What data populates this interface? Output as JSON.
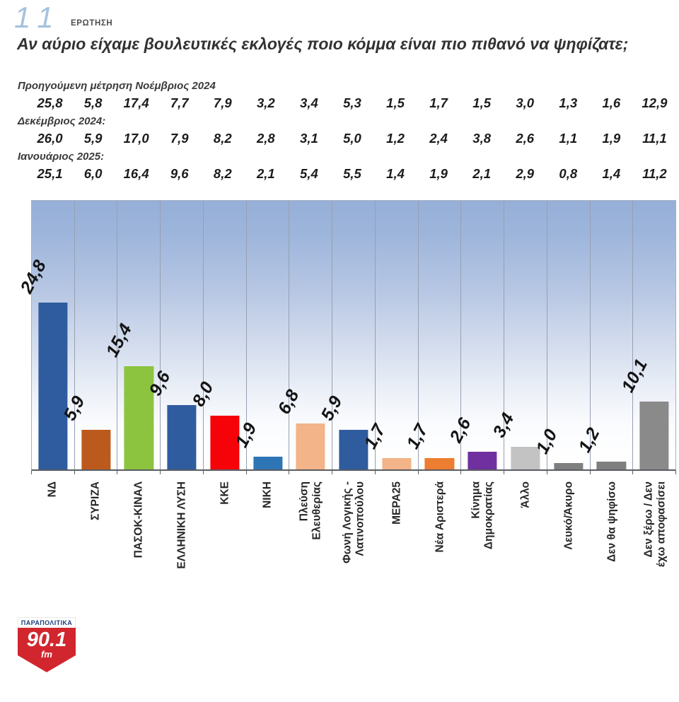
{
  "header": {
    "question_number": "11",
    "question_label": "ΕΡΩΤΗΣΗ",
    "title": "Αν αύριο είχαμε βουλευτικές εκλογές ποιο κόμμα είναι πιο πιθανό να ψηφίζατε;"
  },
  "previous_measurements": [
    {
      "label": "Προηγούμενη μέτρηση Νοέμβριος 2024",
      "values": [
        "25,8",
        "5,8",
        "17,4",
        "7,7",
        "7,9",
        "3,2",
        "3,4",
        "5,3",
        "1,5",
        "1,7",
        "1,5",
        "3,0",
        "1,3",
        "1,6",
        "12,9"
      ]
    },
    {
      "label": "Δεκέμβριος 2024:",
      "values": [
        "26,0",
        "5,9",
        "17,0",
        "7,9",
        "8,2",
        "2,8",
        "3,1",
        "5,0",
        "1,2",
        "2,4",
        "3,8",
        "2,6",
        "1,1",
        "1,9",
        "11,1"
      ]
    },
    {
      "label": "Ιανουάριος 2025:",
      "values": [
        "25,1",
        "6,0",
        "16,4",
        "9,6",
        "8,2",
        "2,1",
        "5,4",
        "5,5",
        "1,4",
        "1,9",
        "2,1",
        "2,9",
        "0,8",
        "1,4",
        "11,2"
      ]
    }
  ],
  "chart_data": {
    "type": "bar",
    "title": "",
    "xlabel": "",
    "ylabel": "",
    "ylim": [
      0,
      40
    ],
    "grid": "vertical category separators, no horizontal gridlines, no y-axis labels",
    "legend": "none",
    "plot_background": "vertical gradient blue #96afd7 at top fading to white at bottom",
    "categories": [
      "ΝΔ",
      "ΣΥΡΙΖΑ",
      "ΠΑΣΟΚ-ΚΙΝΑΛ",
      "ΕΛΛΗΝΙΚΗ ΛΥΣΗ",
      "ΚΚΕ",
      "ΝΙΚΗ",
      "Πλεύση\nΕλευθερίας",
      "Φωνή Λογικής -\nΛατινοπούλου",
      "ΜΕΡΑ25",
      "Νέα Αριστερά",
      "Κίνημα\nΔημοκρατίας",
      "Άλλο",
      "Λευκό/Άκυρο",
      "Δεν θα ψηφίσω",
      "Δεν ξέρω / Δεν\nέχω αποφασίσει"
    ],
    "values": [
      24.8,
      5.9,
      15.4,
      9.6,
      8.0,
      1.9,
      6.8,
      5.9,
      1.7,
      1.7,
      2.6,
      3.4,
      1.0,
      1.2,
      10.1
    ],
    "value_labels": [
      "24,8",
      "5,9",
      "15,4",
      "9,6",
      "8,0",
      "1,9",
      "6,8",
      "5,9",
      "1,7",
      "1,7",
      "2,6",
      "3,4",
      "1,0",
      "1,2",
      "10,1"
    ],
    "bar_colors": [
      "#2f5c9e",
      "#bc5a1e",
      "#8cc440",
      "#2f5c9e",
      "#f50308",
      "#2e75b6",
      "#f2b488",
      "#2f5c9e",
      "#f2b488",
      "#ed7d31",
      "#7030a0",
      "#c3c3c3",
      "#7f7f7f",
      "#7f7f7f",
      "#8a8a8a"
    ]
  },
  "logo": {
    "station": "ΠΑΡΑΠΟΛΙΤΙΚΑ",
    "frequency": "90.1",
    "band": "fm",
    "brand_red": "#d2262e",
    "brand_blue": "#1c3e7a"
  }
}
